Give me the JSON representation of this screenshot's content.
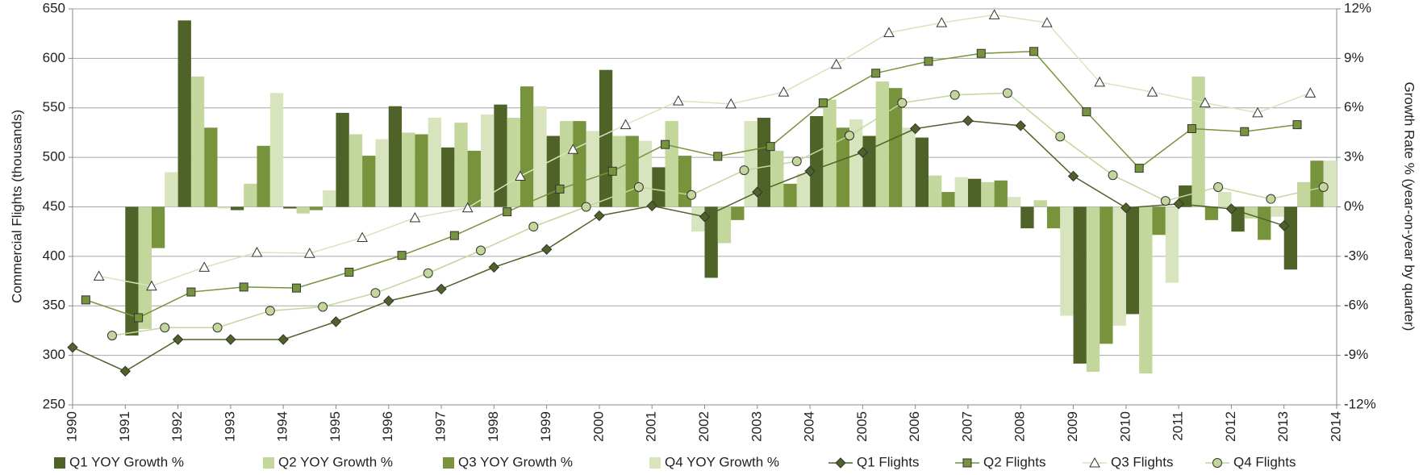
{
  "chart_data": {
    "type": "combo",
    "ylabel": "Commercial Flights (thousands)",
    "y2label": "Growth Rate % (year-on-year by quarter)",
    "x": [
      1990,
      1991,
      1992,
      1993,
      1994,
      1995,
      1996,
      1997,
      1998,
      1999,
      2000,
      2001,
      2002,
      2003,
      2004,
      2005,
      2006,
      2007,
      2008,
      2009,
      2010,
      2011,
      2012,
      2013
    ],
    "xlim": [
      1990,
      2014
    ],
    "xticks": [
      1990,
      1991,
      1992,
      1993,
      1994,
      1995,
      1996,
      1997,
      1998,
      1999,
      2000,
      2001,
      2002,
      2003,
      2004,
      2005,
      2006,
      2007,
      2008,
      2009,
      2010,
      2011,
      2012,
      2013,
      2014
    ],
    "ylim": [
      250,
      650
    ],
    "yticks": [
      250,
      300,
      350,
      400,
      450,
      500,
      550,
      600,
      650
    ],
    "y2lim": [
      -12,
      12
    ],
    "y2ticks": [
      {
        "value": -12,
        "label": "-12%"
      },
      {
        "value": -9,
        "label": "-9%"
      },
      {
        "value": -6,
        "label": "-6%"
      },
      {
        "value": -3,
        "label": "-3%"
      },
      {
        "value": 0,
        "label": "0%"
      },
      {
        "value": 3,
        "label": "3%"
      },
      {
        "value": 6,
        "label": "6%"
      },
      {
        "value": 9,
        "label": "9%"
      },
      {
        "value": 12,
        "label": "12%"
      }
    ],
    "grid": true,
    "legend": "bottom",
    "series": [
      {
        "name": "Q1 YOY Growth %",
        "type": "bar",
        "axis": "y2",
        "color": "#4f6228",
        "values": [
          null,
          -7.8,
          11.3,
          -0.2,
          -0.1,
          5.7,
          6.1,
          3.6,
          6.2,
          4.3,
          8.3,
          2.4,
          -4.3,
          5.4,
          5.5,
          4.3,
          4.2,
          1.7,
          -1.3,
          -9.5,
          -6.5,
          1.3,
          -1.5,
          -3.8
        ]
      },
      {
        "name": "Q2 YOY Growth %",
        "type": "bar",
        "axis": "y2",
        "color": "#c3d69b",
        "values": [
          null,
          -7.4,
          7.9,
          1.4,
          -0.4,
          4.4,
          4.5,
          5.1,
          5.4,
          5.2,
          4.3,
          5.2,
          -2.2,
          3.4,
          6.5,
          7.6,
          1.9,
          1.5,
          0.4,
          -10.0,
          -10.1,
          7.9,
          -0.7,
          1.5
        ]
      },
      {
        "name": "Q3 YOY Growth %",
        "type": "bar",
        "axis": "y2",
        "color": "#77933c",
        "values": [
          null,
          -2.5,
          4.8,
          3.7,
          -0.2,
          3.1,
          4.4,
          3.4,
          7.3,
          5.2,
          4.3,
          3.1,
          -0.8,
          1.4,
          4.8,
          7.2,
          0.9,
          1.6,
          -1.3,
          -8.3,
          -1.7,
          -0.8,
          -2.0,
          2.8
        ]
      },
      {
        "name": "Q4 YOY Growth %",
        "type": "bar",
        "axis": "y2",
        "color": "#d7e4bd",
        "values": [
          null,
          2.1,
          -0.1,
          6.9,
          1.0,
          4.1,
          5.4,
          5.6,
          6.1,
          4.6,
          4.0,
          -1.5,
          5.2,
          2.0,
          5.3,
          4.8,
          1.8,
          0.6,
          -6.6,
          -7.2,
          -4.6,
          0.9,
          -0.6,
          2.8
        ]
      },
      {
        "name": "Q1 Flights",
        "type": "line",
        "marker": "diamond",
        "color": "#4f6228",
        "values": [
          308,
          284,
          316,
          316,
          316,
          334,
          355,
          367,
          389,
          407,
          441,
          451,
          440,
          465,
          486,
          505,
          529,
          537,
          532,
          481,
          449,
          453,
          448,
          431
        ]
      },
      {
        "name": "Q2 Flights",
        "type": "line",
        "marker": "square",
        "color": "#77933c",
        "values": [
          356,
          338,
          364,
          369,
          368,
          384,
          401,
          421,
          445,
          468,
          486,
          513,
          501,
          511,
          555,
          585,
          597,
          605,
          607,
          546,
          489,
          529,
          526,
          533
        ]
      },
      {
        "name": "Q3 Flights",
        "type": "line",
        "marker": "triangle",
        "color": "#d7e4bd",
        "values": [
          380,
          370,
          389,
          404,
          403,
          419,
          439,
          449,
          481,
          508,
          533,
          557,
          554,
          566,
          594,
          626,
          636,
          644,
          636,
          576,
          566,
          555,
          545,
          565
        ]
      },
      {
        "name": "Q4 Flights",
        "type": "line",
        "marker": "circle",
        "color": "#c3d69b",
        "values": [
          320,
          328,
          328,
          345,
          349,
          363,
          383,
          406,
          430,
          450,
          470,
          462,
          487,
          496,
          522,
          555,
          563,
          565,
          521,
          482,
          456,
          470,
          458,
          470
        ]
      }
    ]
  }
}
